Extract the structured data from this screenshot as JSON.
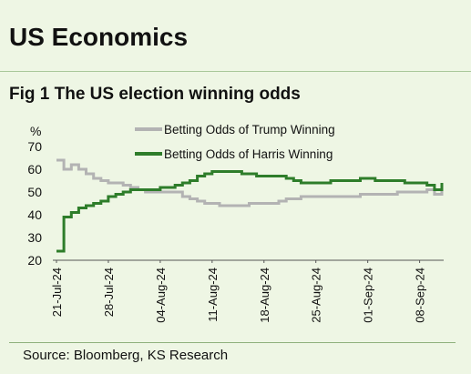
{
  "header": {
    "section_title": "US Economics",
    "figure_title": "Fig 1 The US election winning odds",
    "source": "Source: Bloomberg, KS Research"
  },
  "colors": {
    "background": "#eef6e4",
    "trump": "#b3b3b3",
    "harris": "#2e7d2a"
  },
  "chart_data": {
    "type": "line",
    "ylabel": "%",
    "ylim": [
      20,
      70
    ],
    "yticks": [
      20,
      30,
      40,
      50,
      60,
      70
    ],
    "xlabels": [
      "21-Jul-24",
      "28-Jul-24",
      "04-Aug-24",
      "11-Aug-24",
      "18-Aug-24",
      "25-Aug-24",
      "01-Sep-24",
      "08-Sep-24"
    ],
    "x_start": "2024-07-21",
    "x_end": "2024-09-11",
    "grid": false,
    "legend": "top",
    "series": [
      {
        "name": "Betting Odds of Trump Winning",
        "color": "#b3b3b3",
        "line_width": 3,
        "points": [
          [
            "2024-07-21",
            64
          ],
          [
            "2024-07-22",
            60
          ],
          [
            "2024-07-23",
            62
          ],
          [
            "2024-07-24",
            60
          ],
          [
            "2024-07-25",
            58
          ],
          [
            "2024-07-26",
            56
          ],
          [
            "2024-07-27",
            55
          ],
          [
            "2024-07-28",
            54
          ],
          [
            "2024-07-29",
            54
          ],
          [
            "2024-07-30",
            53
          ],
          [
            "2024-07-31",
            52
          ],
          [
            "2024-08-01",
            51
          ],
          [
            "2024-08-02",
            50
          ],
          [
            "2024-08-04",
            50
          ],
          [
            "2024-08-06",
            50
          ],
          [
            "2024-08-07",
            48
          ],
          [
            "2024-08-08",
            47
          ],
          [
            "2024-08-09",
            46
          ],
          [
            "2024-08-10",
            45
          ],
          [
            "2024-08-11",
            45
          ],
          [
            "2024-08-12",
            44
          ],
          [
            "2024-08-14",
            44
          ],
          [
            "2024-08-16",
            45
          ],
          [
            "2024-08-18",
            45
          ],
          [
            "2024-08-20",
            46
          ],
          [
            "2024-08-21",
            47
          ],
          [
            "2024-08-22",
            47
          ],
          [
            "2024-08-23",
            48
          ],
          [
            "2024-08-25",
            48
          ],
          [
            "2024-08-27",
            48
          ],
          [
            "2024-08-29",
            48
          ],
          [
            "2024-08-31",
            49
          ],
          [
            "2024-09-02",
            49
          ],
          [
            "2024-09-04",
            49
          ],
          [
            "2024-09-05",
            50
          ],
          [
            "2024-09-06",
            50
          ],
          [
            "2024-09-08",
            50
          ],
          [
            "2024-09-09",
            51
          ],
          [
            "2024-09-10",
            49
          ],
          [
            "2024-09-11",
            52
          ]
        ]
      },
      {
        "name": "Betting Odds of Harris Winning",
        "color": "#2e7d2a",
        "line_width": 3,
        "points": [
          [
            "2024-07-21",
            24
          ],
          [
            "2024-07-22",
            39
          ],
          [
            "2024-07-23",
            41
          ],
          [
            "2024-07-24",
            43
          ],
          [
            "2024-07-25",
            44
          ],
          [
            "2024-07-26",
            45
          ],
          [
            "2024-07-27",
            46
          ],
          [
            "2024-07-28",
            48
          ],
          [
            "2024-07-29",
            49
          ],
          [
            "2024-07-30",
            50
          ],
          [
            "2024-07-31",
            51
          ],
          [
            "2024-08-02",
            51
          ],
          [
            "2024-08-04",
            52
          ],
          [
            "2024-08-06",
            53
          ],
          [
            "2024-08-07",
            54
          ],
          [
            "2024-08-08",
            55
          ],
          [
            "2024-08-09",
            57
          ],
          [
            "2024-08-10",
            58
          ],
          [
            "2024-08-11",
            59
          ],
          [
            "2024-08-13",
            59
          ],
          [
            "2024-08-15",
            58
          ],
          [
            "2024-08-17",
            57
          ],
          [
            "2024-08-19",
            57
          ],
          [
            "2024-08-21",
            56
          ],
          [
            "2024-08-22",
            55
          ],
          [
            "2024-08-23",
            54
          ],
          [
            "2024-08-25",
            54
          ],
          [
            "2024-08-27",
            55
          ],
          [
            "2024-08-29",
            55
          ],
          [
            "2024-08-31",
            56
          ],
          [
            "2024-09-02",
            55
          ],
          [
            "2024-09-04",
            55
          ],
          [
            "2024-09-06",
            54
          ],
          [
            "2024-09-08",
            54
          ],
          [
            "2024-09-09",
            53
          ],
          [
            "2024-09-10",
            51
          ],
          [
            "2024-09-11",
            54
          ]
        ]
      }
    ]
  }
}
